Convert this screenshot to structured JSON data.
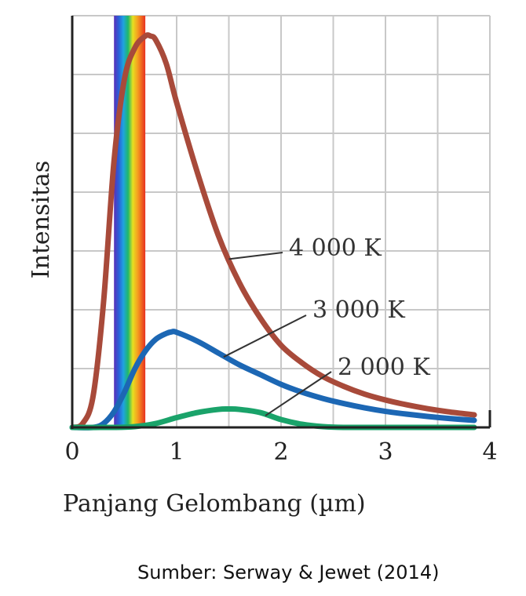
{
  "chart_data": {
    "type": "line",
    "title": "",
    "xlabel": "Panjang Gelombang (µm)",
    "ylabel": "Intensitas",
    "xlim": [
      0,
      4
    ],
    "xticks": [
      "0",
      "1",
      "2",
      "3",
      "4"
    ],
    "ylim": [
      0,
      1
    ],
    "grid": true,
    "y_tick_labels": false,
    "visible_spectrum_band_um": [
      0.4,
      0.7
    ],
    "series": [
      {
        "name": "4 000 K",
        "color": "#a84a3a",
        "x": [
          0,
          0.1,
          0.2,
          0.3,
          0.4,
          0.5,
          0.6,
          0.7,
          0.75,
          0.8,
          0.9,
          1.0,
          1.2,
          1.4,
          1.6,
          1.8,
          2.0,
          2.2,
          2.4,
          2.6,
          2.8,
          3.0,
          3.2,
          3.4,
          3.6,
          3.85
        ],
        "y": [
          0,
          0.01,
          0.08,
          0.32,
          0.68,
          0.89,
          0.97,
          1.0,
          1.0,
          0.99,
          0.93,
          0.83,
          0.65,
          0.49,
          0.37,
          0.28,
          0.21,
          0.165,
          0.13,
          0.105,
          0.085,
          0.07,
          0.058,
          0.048,
          0.04,
          0.032
        ]
      },
      {
        "name": "3 000 K",
        "color": "#1c67b4",
        "x": [
          0,
          0.2,
          0.3,
          0.4,
          0.5,
          0.6,
          0.7,
          0.8,
          0.9,
          0.95,
          1.0,
          1.2,
          1.4,
          1.6,
          1.8,
          2.0,
          2.2,
          2.4,
          2.6,
          2.8,
          3.0,
          3.2,
          3.4,
          3.6,
          3.85
        ],
        "y": [
          0,
          0.0,
          0.01,
          0.04,
          0.09,
          0.15,
          0.195,
          0.225,
          0.24,
          0.244,
          0.243,
          0.22,
          0.19,
          0.16,
          0.135,
          0.11,
          0.09,
          0.074,
          0.061,
          0.05,
          0.041,
          0.034,
          0.028,
          0.023,
          0.018
        ]
      },
      {
        "name": "2 000 K",
        "color": "#1aa36a",
        "x": [
          0,
          0.4,
          0.6,
          0.8,
          1.0,
          1.2,
          1.4,
          1.5,
          1.6,
          1.8,
          2.0,
          2.2,
          2.4,
          2.6,
          3.0,
          3.4,
          3.85
        ],
        "y": [
          0,
          0.0,
          0.002,
          0.01,
          0.025,
          0.038,
          0.046,
          0.047,
          0.046,
          0.038,
          0.02,
          0.008,
          0.002,
          0.0,
          0.0,
          0.0,
          0.0
        ]
      }
    ]
  },
  "source_text": "Sumber: Serway & Jewet (2014)"
}
